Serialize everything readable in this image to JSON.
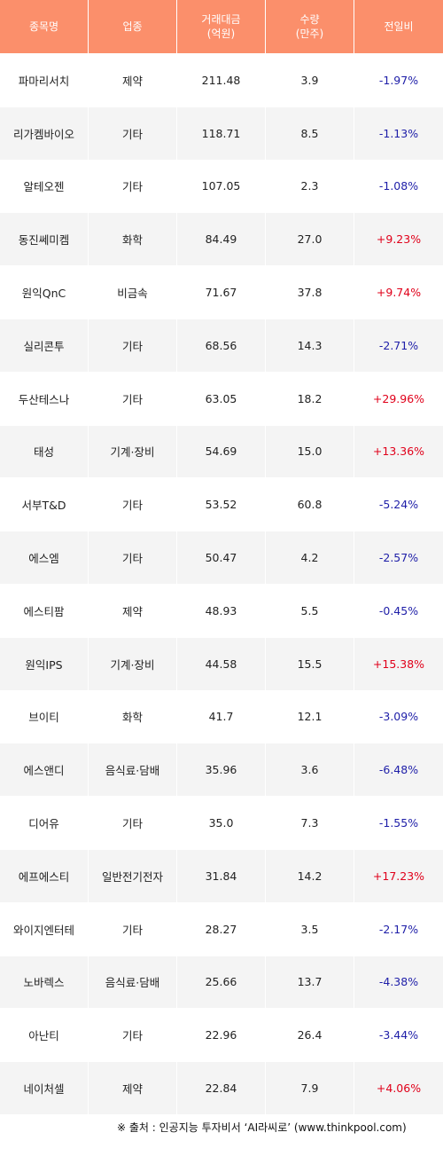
{
  "header": {
    "col1": "종목명",
    "col2": "업종",
    "col3_line1": "거래대금",
    "col3_line2": "(억원)",
    "col4_line1": "수량",
    "col4_line2": "(만주)",
    "col5": "전일비"
  },
  "rows": [
    {
      "name": "파마리서치",
      "sector": "제약",
      "amount": "211.48",
      "qty": "3.9",
      "change": "-1.97%"
    },
    {
      "name": "리가켐바이오",
      "sector": "기타",
      "amount": "118.71",
      "qty": "8.5",
      "change": "-1.13%"
    },
    {
      "name": "알테오젠",
      "sector": "기타",
      "amount": "107.05",
      "qty": "2.3",
      "change": "-1.08%"
    },
    {
      "name": "동진쎄미켐",
      "sector": "화학",
      "amount": "84.49",
      "qty": "27.0",
      "change": "+9.23%"
    },
    {
      "name": "원익QnC",
      "sector": "비금속",
      "amount": "71.67",
      "qty": "37.8",
      "change": "+9.74%"
    },
    {
      "name": "실리콘투",
      "sector": "기타",
      "amount": "68.56",
      "qty": "14.3",
      "change": "-2.71%"
    },
    {
      "name": "두산테스나",
      "sector": "기타",
      "amount": "63.05",
      "qty": "18.2",
      "change": "+29.96%"
    },
    {
      "name": "태성",
      "sector": "기계·장비",
      "amount": "54.69",
      "qty": "15.0",
      "change": "+13.36%"
    },
    {
      "name": "서부T&D",
      "sector": "기타",
      "amount": "53.52",
      "qty": "60.8",
      "change": "-5.24%"
    },
    {
      "name": "에스엠",
      "sector": "기타",
      "amount": "50.47",
      "qty": "4.2",
      "change": "-2.57%"
    },
    {
      "name": "에스티팜",
      "sector": "제약",
      "amount": "48.93",
      "qty": "5.5",
      "change": "-0.45%"
    },
    {
      "name": "원익IPS",
      "sector": "기계·장비",
      "amount": "44.58",
      "qty": "15.5",
      "change": "+15.38%"
    },
    {
      "name": "브이티",
      "sector": "화학",
      "amount": "41.7",
      "qty": "12.1",
      "change": "-3.09%"
    },
    {
      "name": "에스앤디",
      "sector": "음식료·담배",
      "amount": "35.96",
      "qty": "3.6",
      "change": "-6.48%"
    },
    {
      "name": "디어유",
      "sector": "기타",
      "amount": "35.0",
      "qty": "7.3",
      "change": "-1.55%"
    },
    {
      "name": "에프에스티",
      "sector": "일반전기전자",
      "amount": "31.84",
      "qty": "14.2",
      "change": "+17.23%"
    },
    {
      "name": "와이지엔터테",
      "sector": "기타",
      "amount": "28.27",
      "qty": "3.5",
      "change": "-2.17%"
    },
    {
      "name": "노바렉스",
      "sector": "음식료·담배",
      "amount": "25.66",
      "qty": "13.7",
      "change": "-4.38%"
    },
    {
      "name": "아난티",
      "sector": "기타",
      "amount": "22.96",
      "qty": "26.4",
      "change": "-3.44%"
    },
    {
      "name": "네이처셀",
      "sector": "제약",
      "amount": "22.84",
      "qty": "7.9",
      "change": "+4.06%"
    }
  ],
  "source_note": "※ 출처 : 인공지능 투자비서 ‘AI라씨로’ (www.thinkpool.com)",
  "colors": {
    "header_bg": "#fb8f6b",
    "row_alt_bg": "#f4f4f4",
    "positive": "#e0001a",
    "negative": "#1e1ea8"
  }
}
